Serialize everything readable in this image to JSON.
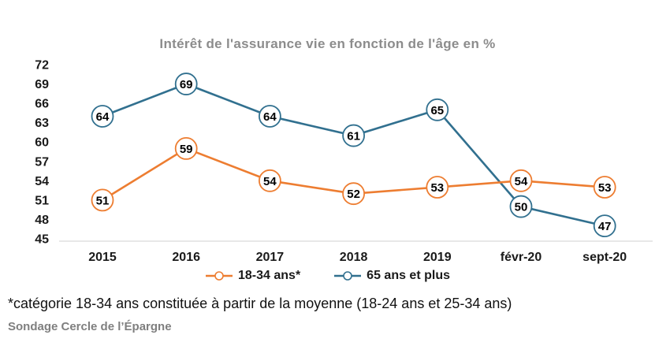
{
  "title": "Intérêt de l'assurance vie en fonction de l'âge en %",
  "footnote": "*catégorie 18-34 ans constituée à partir de la moyenne (18-24 ans et 25-34 ans)",
  "source": "Sondage Cercle de l’Épargne",
  "chart_data": {
    "type": "line",
    "title": "Intérêt de l'assurance vie en fonction de l'âge en %",
    "categories": [
      "2015",
      "2016",
      "2017",
      "2018",
      "2019",
      "févr-20",
      "sept-20"
    ],
    "series": [
      {
        "name": "18-34 ans*",
        "color": "#ED7D31",
        "values": [
          51,
          59,
          54,
          52,
          53,
          54,
          53
        ]
      },
      {
        "name": "65 ans et plus",
        "color": "#31708F",
        "values": [
          64,
          69,
          64,
          61,
          65,
          50,
          47
        ]
      }
    ],
    "ylim": [
      45,
      72
    ],
    "yticks": [
      45,
      48,
      51,
      54,
      57,
      60,
      63,
      66,
      69,
      72
    ],
    "grid": false,
    "legend_position": "bottom",
    "marker_style": "circle-with-value",
    "axis_color": "#D9D9D9",
    "label_color": "#1A1A1A",
    "title_color": "#8C8C8C"
  }
}
